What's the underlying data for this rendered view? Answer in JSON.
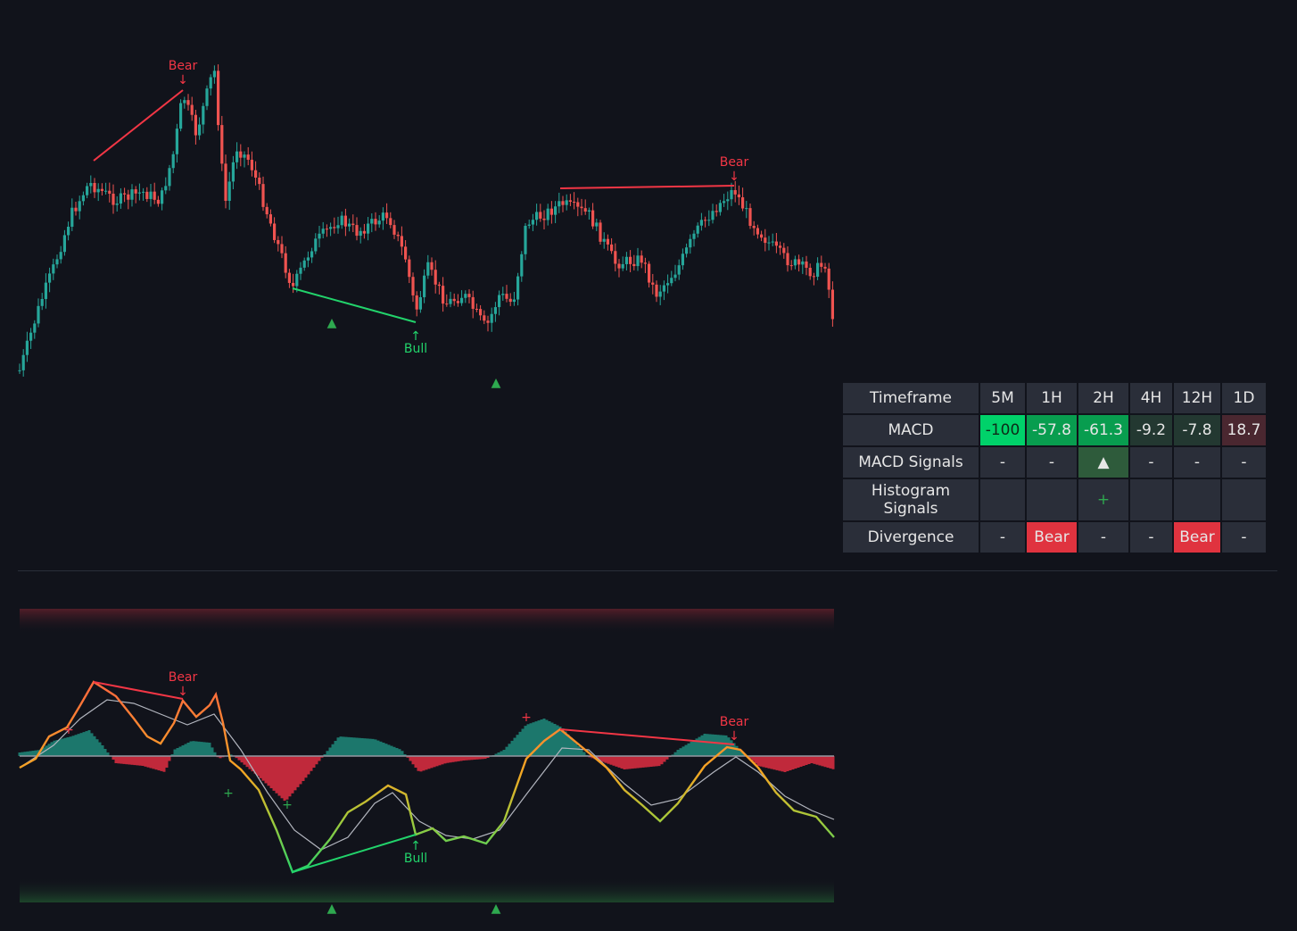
{
  "price_chart": {
    "divergence_labels": [
      {
        "text": "Bear",
        "kind": "bear"
      },
      {
        "text": "Bear",
        "kind": "bear"
      },
      {
        "text": "Bull",
        "kind": "bull"
      }
    ],
    "signal_markers": [
      "▲",
      "▲"
    ],
    "colors": {
      "up": "#26a69a",
      "down": "#ef5350",
      "bear": "#f23645",
      "bull": "#22d36b"
    }
  },
  "oscillator": {
    "divergence_labels": [
      {
        "text": "Bear",
        "kind": "bear"
      },
      {
        "text": "Bear",
        "kind": "bear"
      },
      {
        "text": "Bull",
        "kind": "bull"
      }
    ],
    "plus_markers": [
      "+",
      "+",
      "+",
      "+"
    ],
    "signal_markers": [
      "▲",
      "▲"
    ]
  },
  "table": {
    "header": [
      "Timeframe",
      "5M",
      "1H",
      "2H",
      "4H",
      "12H",
      "1D"
    ],
    "rows": [
      {
        "label": "MACD",
        "cells": [
          "-100",
          "-57.8",
          "-61.3",
          "-9.2",
          "-7.8",
          "18.7"
        ]
      },
      {
        "label": "MACD Signals",
        "cells": [
          "-",
          "-",
          "▲",
          "-",
          "-",
          "-"
        ]
      },
      {
        "label": "Histogram Signals",
        "cells": [
          "",
          "",
          "+",
          "",
          "",
          ""
        ]
      },
      {
        "label": "Divergence",
        "cells": [
          "-",
          "Bear",
          "-",
          "-",
          "Bear",
          "-"
        ]
      }
    ]
  }
}
